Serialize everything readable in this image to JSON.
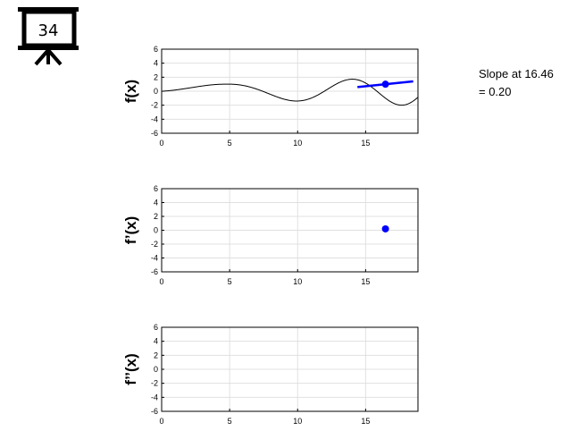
{
  "badge": {
    "number": "34"
  },
  "slope_text": {
    "line1": "Slope at 16.46",
    "line2": "= 0.20"
  },
  "colors": {
    "f_line": "#000000",
    "df_line": "#0000ff",
    "marker": "#0000ff",
    "grid": "#e0e0e0"
  },
  "chart_data": [
    {
      "type": "line",
      "ylabel": "f(x)",
      "xlim": [
        0,
        18.85
      ],
      "ylim": [
        -6,
        6
      ],
      "xticks": [
        0,
        5,
        10,
        15
      ],
      "yticks": [
        -6,
        -4,
        -2,
        0,
        2,
        4,
        6
      ],
      "grid": true,
      "series": [
        {
          "function": "f",
          "color": "#000000"
        }
      ],
      "point": {
        "x": 16.46,
        "y": 1.0
      },
      "tangent": {
        "slope": 0.2,
        "x_from": 14.4,
        "x_to": 18.5
      }
    },
    {
      "type": "line",
      "ylabel": "f’(x)",
      "xlim": [
        0,
        18.85
      ],
      "ylim": [
        -6,
        6
      ],
      "xticks": [
        0,
        5,
        10,
        15
      ],
      "yticks": [
        -6,
        -4,
        -2,
        0,
        2,
        4,
        6
      ],
      "grid": true,
      "series": [
        {
          "function": "df",
          "color": "#0000ff",
          "x_max": 16.46
        }
      ],
      "point": {
        "x": 16.46,
        "y": 0.2
      }
    },
    {
      "type": "line",
      "ylabel": "f’’(x)",
      "xlim": [
        0,
        18.85
      ],
      "ylim": [
        -6,
        6
      ],
      "xticks": [
        0,
        5,
        10,
        15
      ],
      "yticks": [
        -6,
        -4,
        -2,
        0,
        2,
        4,
        6
      ],
      "grid": true,
      "series": []
    }
  ]
}
